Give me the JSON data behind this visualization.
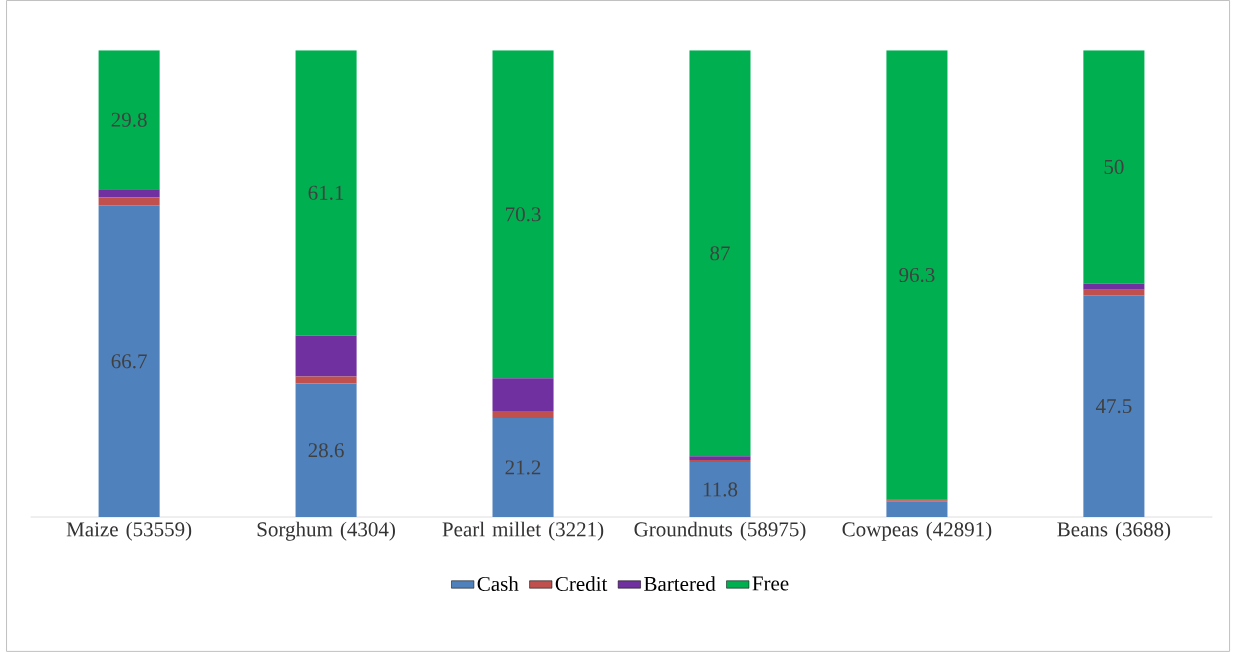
{
  "chart_data": {
    "type": "bar",
    "stacked": true,
    "legend": "bottom",
    "categories": [
      "Maize (53559)",
      "Sorghum (4304)",
      "Pearl millet (3221)",
      "Groundnuts (58975)",
      "Cowpeas (42891)",
      "Beans (3688)"
    ],
    "series": [
      {
        "name": "Cash",
        "color": "#4f81bd",
        "values": [
          66.7,
          28.6,
          21.2,
          11.8,
          3.4,
          47.5
        ],
        "value_labels": [
          "66.7",
          "28.6",
          "21.2",
          "11.8",
          null,
          "47.5"
        ]
      },
      {
        "name": "Credit",
        "color": "#c0504d",
        "values": [
          1.8,
          1.5,
          1.5,
          0.4,
          0.2,
          1.2
        ]
      },
      {
        "name": "Bartered",
        "color": "#7030a0",
        "values": [
          1.7,
          8.8,
          7.0,
          0.8,
          0.1,
          1.3
        ]
      },
      {
        "name": "Free",
        "color": "#00b050",
        "values": [
          29.8,
          61.1,
          70.3,
          87,
          96.3,
          50
        ],
        "value_labels": [
          "29.8",
          "61.1",
          "70.3",
          "87",
          "96.3",
          "50"
        ]
      }
    ]
  }
}
